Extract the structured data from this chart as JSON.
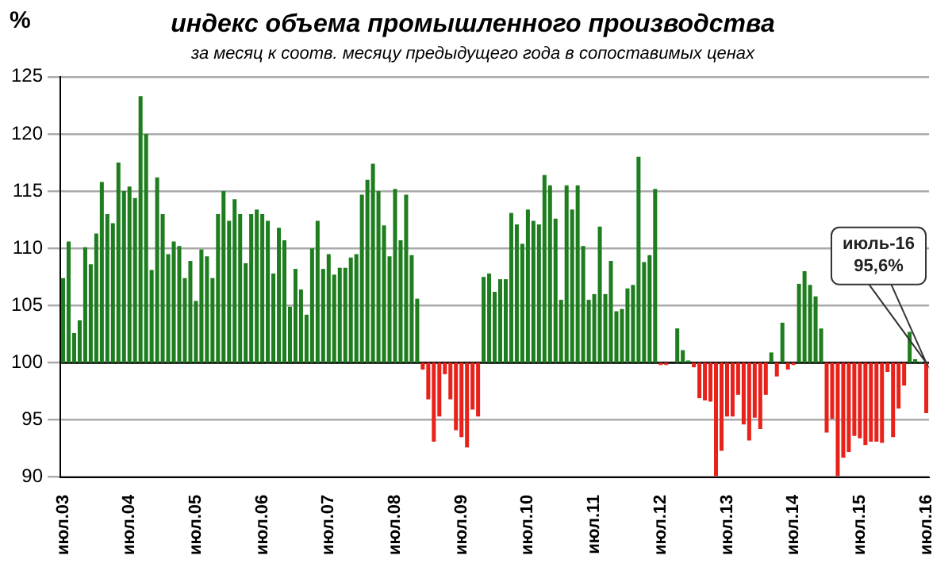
{
  "chart_data": {
    "type": "bar",
    "title": "индекс объема промышленного производства",
    "subtitle": "за месяц к соотв. месяцу предыдущего года в сопоставимых ценах",
    "ylabel": "%",
    "categories": [
      "июл.03",
      null,
      null,
      null,
      null,
      null,
      null,
      null,
      null,
      null,
      null,
      null,
      "июл.04",
      null,
      null,
      null,
      null,
      null,
      null,
      null,
      null,
      null,
      null,
      null,
      "июл.05",
      null,
      null,
      null,
      null,
      null,
      null,
      null,
      null,
      null,
      null,
      null,
      "июл.06",
      null,
      null,
      null,
      null,
      null,
      null,
      null,
      null,
      null,
      null,
      null,
      "июл.07",
      null,
      null,
      null,
      null,
      null,
      null,
      null,
      null,
      null,
      null,
      null,
      "июл.08",
      null,
      null,
      null,
      null,
      null,
      null,
      null,
      null,
      null,
      null,
      null,
      "июл.09",
      null,
      null,
      null,
      null,
      null,
      null,
      null,
      null,
      null,
      null,
      null,
      "июл.10",
      null,
      null,
      null,
      null,
      null,
      null,
      null,
      null,
      null,
      null,
      null,
      "июл.11",
      null,
      null,
      null,
      null,
      null,
      null,
      null,
      null,
      null,
      null,
      null,
      "июл.12",
      null,
      null,
      null,
      null,
      null,
      null,
      null,
      null,
      null,
      null,
      null,
      "июл.13",
      null,
      null,
      null,
      null,
      null,
      null,
      null,
      null,
      null,
      null,
      null,
      "июл.14",
      null,
      null,
      null,
      null,
      null,
      null,
      null,
      null,
      null,
      null,
      null,
      "июл.15",
      null,
      null,
      null,
      null,
      null,
      null,
      null,
      null,
      null,
      null,
      null,
      "июл.16"
    ],
    "values": [
      7.4,
      10.6,
      2.6,
      3.7,
      10.1,
      8.6,
      11.3,
      15.8,
      13,
      12.2,
      17.5,
      15,
      15.4,
      14.4,
      23.3,
      20,
      8.1,
      16.2,
      13,
      9.5,
      10.6,
      10.2,
      7.4,
      8.9,
      5.4,
      9.9,
      9.3,
      7.4,
      13,
      15,
      12.4,
      14.3,
      13,
      8.7,
      13,
      13.4,
      13,
      12.4,
      7.8,
      11.8,
      10.7,
      4.9,
      8.2,
      6.4,
      4.2,
      10,
      12.4,
      8.2,
      9.5,
      7.7,
      8.3,
      8.3,
      9.2,
      9.5,
      14.7,
      16,
      17.4,
      15,
      12,
      9.3,
      15.2,
      10.7,
      14.7,
      9.4,
      5.6,
      -0.6,
      -3.2,
      -6.9,
      -4.7,
      -1,
      -3.2,
      -5.9,
      -6.5,
      -7.4,
      -4.1,
      -4.7,
      7.5,
      7.8,
      6.2,
      7.3,
      7.3,
      13.1,
      12.1,
      10.4,
      13.4,
      12.4,
      12.1,
      16.4,
      15.5,
      12.6,
      5.5,
      15.5,
      13.4,
      15.5,
      10.2,
      5.5,
      6,
      11.9,
      6,
      8.9,
      4.5,
      4.7,
      6.5,
      6.8,
      18,
      8.8,
      9.4,
      15.2,
      -0.2,
      -0.2,
      null,
      3,
      1.1,
      0.2,
      -0.4,
      -3.1,
      -3.3,
      -3.4,
      -9.9,
      -7.7,
      -4.7,
      -4.7,
      -2.8,
      -5.4,
      -6.8,
      -4.8,
      -5.8,
      -2.8,
      0.9,
      -1.2,
      3.5,
      -0.6,
      -0.2,
      6.9,
      8,
      6.8,
      5.8,
      3,
      -6.1,
      -4.9,
      -9.9,
      -8.3,
      -7.8,
      -6.4,
      -6.6,
      -7.2,
      -6.9,
      -6.9,
      -7,
      -0.8,
      -6.5,
      -4,
      -2,
      2.7,
      0.3,
      0.1,
      -4.4
    ],
    "base": [
      100,
      100,
      100,
      100,
      100,
      100,
      100,
      100,
      100,
      100,
      100,
      100,
      100,
      100,
      100,
      100,
      100,
      100,
      100,
      100,
      100,
      100,
      100,
      100,
      100,
      100,
      100,
      100,
      100,
      100,
      100,
      100,
      100,
      100,
      100,
      100,
      100,
      100,
      100,
      100,
      100,
      100,
      100,
      100,
      100,
      100,
      100,
      100,
      100,
      100,
      100,
      100,
      100,
      100,
      100,
      100,
      100,
      100,
      100,
      100,
      100,
      100,
      100,
      100,
      100,
      100,
      100,
      100,
      100,
      100,
      100,
      100,
      100,
      100,
      100,
      100,
      100,
      100,
      100,
      100,
      100,
      100,
      100,
      100,
      100,
      100,
      100,
      100,
      100,
      100,
      100,
      100,
      100,
      100,
      100,
      100,
      100,
      100,
      100,
      100,
      100,
      100,
      100,
      100,
      100,
      100,
      100,
      100,
      100,
      100,
      null,
      100,
      100,
      100,
      100,
      100,
      100,
      100,
      100,
      100,
      100,
      100,
      100,
      100,
      100,
      100,
      100,
      100,
      100,
      100,
      100,
      100,
      100,
      100,
      100,
      100,
      100,
      100,
      100,
      100,
      100,
      100,
      100,
      100,
      100,
      100,
      100,
      100,
      100,
      100,
      100,
      100,
      100,
      100,
      100,
      100,
      100
    ],
    "colors": [
      "#1e7d1e",
      "#1e7d1e",
      "#1e7d1e",
      "#1e7d1e",
      "#1e7d1e",
      "#1e7d1e",
      "#1e7d1e",
      "#1e7d1e",
      "#1e7d1e",
      "#1e7d1e",
      "#1e7d1e",
      "#1e7d1e",
      "#1e7d1e",
      "#1e7d1e",
      "#1e7d1e",
      "#1e7d1e",
      "#1e7d1e",
      "#1e7d1e",
      "#1e7d1e",
      "#1e7d1e",
      "#1e7d1e",
      "#1e7d1e",
      "#1e7d1e",
      "#1e7d1e",
      "#1e7d1e",
      "#1e7d1e",
      "#1e7d1e",
      "#1e7d1e",
      "#1e7d1e",
      "#1e7d1e",
      "#1e7d1e",
      "#1e7d1e",
      "#1e7d1e",
      "#1e7d1e",
      "#1e7d1e",
      "#1e7d1e",
      "#1e7d1e",
      "#1e7d1e",
      "#1e7d1e",
      "#1e7d1e",
      "#1e7d1e",
      "#1e7d1e",
      "#1e7d1e",
      "#1e7d1e",
      "#1e7d1e",
      "#1e7d1e",
      "#1e7d1e",
      "#1e7d1e",
      "#1e7d1e",
      "#1e7d1e",
      "#1e7d1e",
      "#1e7d1e",
      "#1e7d1e",
      "#1e7d1e",
      "#1e7d1e",
      "#1e7d1e",
      "#1e7d1e",
      "#1e7d1e",
      "#1e7d1e",
      "#1e7d1e",
      "#1e7d1e",
      "#1e7d1e",
      "#1e7d1e",
      "#1e7d1e",
      "#1e7d1e",
      "#e8221a",
      "#e8221a",
      "#e8221a",
      "#e8221a",
      "#e8221a",
      "#e8221a",
      "#e8221a",
      "#e8221a",
      "#e8221a",
      "#e8221a",
      "#e8221a",
      "#1e7d1e",
      "#1e7d1e",
      "#1e7d1e",
      "#1e7d1e",
      "#1e7d1e",
      "#1e7d1e",
      "#1e7d1e",
      "#1e7d1e",
      "#1e7d1e",
      "#1e7d1e",
      "#1e7d1e",
      "#1e7d1e",
      "#1e7d1e",
      "#1e7d1e",
      "#1e7d1e",
      "#1e7d1e",
      "#1e7d1e",
      "#1e7d1e",
      "#1e7d1e",
      "#1e7d1e",
      "#1e7d1e",
      "#1e7d1e",
      "#1e7d1e",
      "#1e7d1e",
      "#1e7d1e",
      "#1e7d1e",
      "#1e7d1e",
      "#1e7d1e",
      "#1e7d1e",
      "#1e7d1e",
      "#1e7d1e",
      "#1e7d1e",
      "#e8221a",
      "#e8221a",
      "#1e7d1e",
      "#1e7d1e",
      "#1e7d1e",
      "#1e7d1e",
      "#e8221a",
      "#e8221a",
      "#e8221a",
      "#e8221a",
      "#e8221a",
      "#e8221a",
      "#e8221a",
      "#e8221a",
      "#e8221a",
      "#e8221a",
      "#e8221a",
      "#e8221a",
      "#e8221a",
      "#e8221a",
      "#1e7d1e",
      "#e8221a",
      "#1e7d1e",
      "#e8221a",
      "#e8221a",
      "#1e7d1e",
      "#1e7d1e",
      "#1e7d1e",
      "#1e7d1e",
      "#1e7d1e",
      "#e8221a",
      "#e8221a",
      "#e8221a",
      "#e8221a",
      "#e8221a",
      "#e8221a",
      "#e8221a",
      "#e8221a",
      "#e8221a",
      "#e8221a",
      "#e8221a",
      "#e8221a",
      "#e8221a",
      "#e8221a",
      "#e8221a",
      "#1e7d1e",
      "#1e7d1e",
      "#1e7d1e",
      "#e8221a"
    ],
    "ylim": [
      90,
      125
    ],
    "yticks": [
      90,
      95,
      100,
      105,
      110,
      115,
      120,
      125
    ],
    "grid": "y",
    "legend": false,
    "ref_lines": [
      {
        "axis": "y",
        "value": 100,
        "color": "#000000"
      }
    ],
    "annotations": [
      "июль-16\n95,6%"
    ]
  }
}
